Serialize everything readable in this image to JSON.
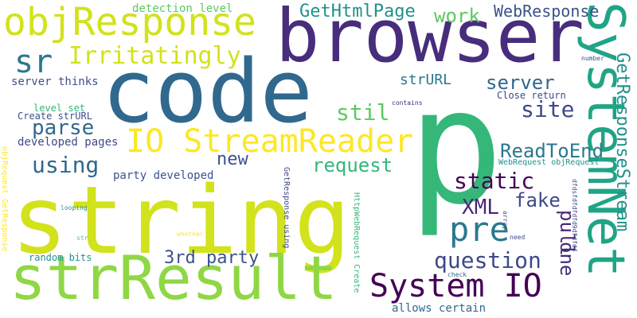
{
  "word_cloud": {
    "words": [
      {
        "text": "string",
        "color": "#d2e21b",
        "vertical": false
      },
      {
        "text": "code",
        "color": "#31688e",
        "vertical": false
      },
      {
        "text": "browser",
        "color": "#472d7b",
        "vertical": false
      },
      {
        "text": "p",
        "color": "#35b779",
        "vertical": false
      },
      {
        "text": "strResult",
        "color": "#8fd744",
        "vertical": false
      },
      {
        "text": "objResponse",
        "color": "#d2e21b",
        "vertical": false
      },
      {
        "text": "SystemNet",
        "color": "#20a486",
        "vertical": true
      },
      {
        "text": "IO StreamReader",
        "color": "#fde725",
        "vertical": false
      },
      {
        "text": "System IO",
        "color": "#440154",
        "vertical": false
      },
      {
        "text": "sr",
        "color": "#2a788e",
        "vertical": false
      },
      {
        "text": "Irritatingly",
        "color": "#d2e21b",
        "vertical": false
      },
      {
        "text": "GetHtmlPage",
        "color": "#21918c",
        "vertical": false
      },
      {
        "text": "work",
        "color": "#5ec962",
        "vertical": false
      },
      {
        "text": "WebResponse",
        "color": "#3b528b",
        "vertical": false
      },
      {
        "text": "server",
        "color": "#31688e",
        "vertical": false
      },
      {
        "text": "strURL",
        "color": "#2a788e",
        "vertical": false
      },
      {
        "text": "stil",
        "color": "#5ec962",
        "vertical": false
      },
      {
        "text": "site",
        "color": "#3e4989",
        "vertical": false
      },
      {
        "text": "parse",
        "color": "#31688e",
        "vertical": false
      },
      {
        "text": "ReadToEnd",
        "color": "#2a788e",
        "vertical": false
      },
      {
        "text": "using",
        "color": "#31688e",
        "vertical": false
      },
      {
        "text": "new",
        "color": "#3b528b",
        "vertical": false
      },
      {
        "text": "request",
        "color": "#35b779",
        "vertical": false
      },
      {
        "text": "static",
        "color": "#440154",
        "vertical": false
      },
      {
        "text": "fake",
        "color": "#3e4989",
        "vertical": false
      },
      {
        "text": "XML",
        "color": "#482878",
        "vertical": false
      },
      {
        "text": "pre",
        "color": "#2a788e",
        "vertical": false
      },
      {
        "text": "pull",
        "color": "#482878",
        "vertical": true
      },
      {
        "text": "one",
        "color": "#472d7b",
        "vertical": true
      },
      {
        "text": "question",
        "color": "#3e4989",
        "vertical": false
      },
      {
        "text": "3rd party",
        "color": "#3b528b",
        "vertical": false
      },
      {
        "text": "GetResponseStream",
        "color": "#21918c",
        "vertical": true
      },
      {
        "text": "detection level",
        "color": "#5ec962",
        "vertical": false
      },
      {
        "text": "server thinks",
        "color": "#3b528b",
        "vertical": false
      },
      {
        "text": "level set",
        "color": "#35b779",
        "vertical": false
      },
      {
        "text": "Create strURL",
        "color": "#3b528b",
        "vertical": false
      },
      {
        "text": "developed pages",
        "color": "#3e4989",
        "vertical": false
      },
      {
        "text": "party developed",
        "color": "#3b528b",
        "vertical": false
      },
      {
        "text": "random bits",
        "color": "#21918c",
        "vertical": false
      },
      {
        "text": "allows certain",
        "color": "#31688e",
        "vertical": false
      },
      {
        "text": "Close return",
        "color": "#3e4989",
        "vertical": false
      },
      {
        "text": "WebRequest objRequest",
        "color": "#21918c",
        "vertical": false
      },
      {
        "text": "contains",
        "color": "#472d7b",
        "vertical": false
      },
      {
        "text": "number",
        "color": "#3b528b",
        "vertical": false
      },
      {
        "text": "objRequest GetResponse",
        "color": "#fde725",
        "vertical": true
      },
      {
        "text": "GetResponse using",
        "color": "#3e4989",
        "vertical": true
      },
      {
        "text": "HttpWebRequest Create",
        "color": "#35b779",
        "vertical": true
      },
      {
        "text": "array",
        "color": "#3b528b",
        "vertical": true
      },
      {
        "text": "dfdsfdfdfdfd9dfdfd4",
        "color": "#3e4989",
        "vertical": true
      },
      {
        "text": "looping",
        "color": "#21918c",
        "vertical": false
      },
      {
        "text": "whether",
        "color": "#fde725",
        "vertical": false
      },
      {
        "text": "str",
        "color": "#5ec962",
        "vertical": false
      },
      {
        "text": "need",
        "color": "#3e4989",
        "vertical": false
      },
      {
        "text": "check",
        "color": "#31688e",
        "vertical": false
      }
    ]
  }
}
